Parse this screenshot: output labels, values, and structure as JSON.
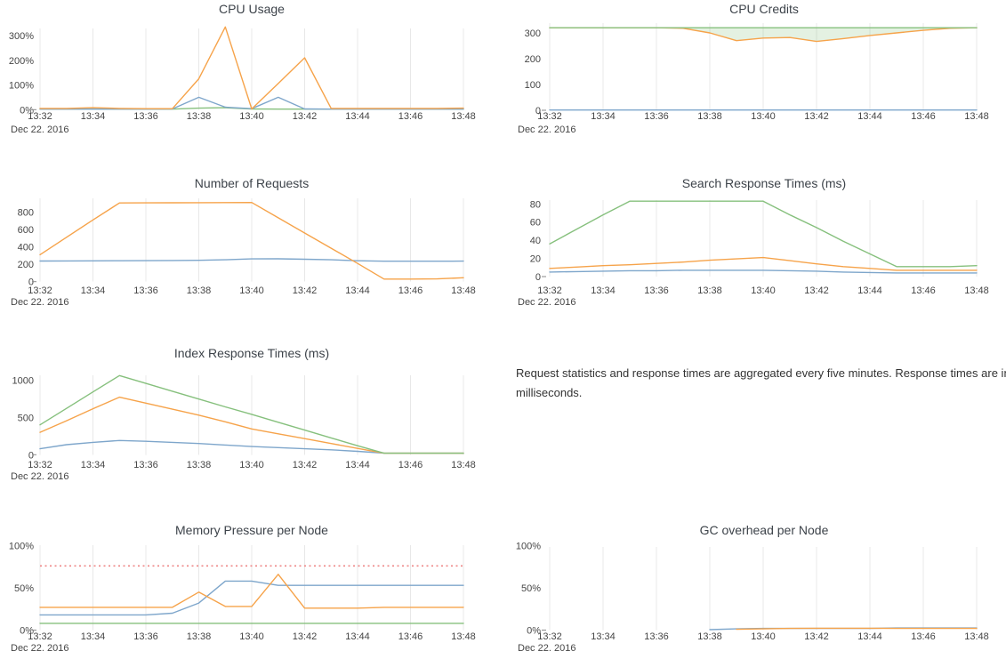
{
  "palette": {
    "blue": "#7ea6cb",
    "orange": "#f6a34a",
    "green": "#86c07d",
    "red": "#ee8686",
    "grid": "#e8e8e8",
    "axis_tick": "#8a8a8a",
    "title_color": "#3d434a",
    "tick_label_color": "#454545",
    "note_color": "#333333",
    "background": "#ffffff"
  },
  "note": {
    "text": "Request statistics and response times are aggregated every five minutes. Response times are in milliseconds."
  },
  "chart_data": [
    {
      "id": "cpu_usage",
      "type": "line",
      "title": "CPU Usage",
      "x_ticks": [
        "13:32",
        "13:34",
        "13:36",
        "13:38",
        "13:40",
        "13:42",
        "13:44",
        "13:46",
        "13:48"
      ],
      "x_date_label": "Dec 22. 2016",
      "x_start": "13:32",
      "x_interval_minutes": 1,
      "ylim": [
        0,
        345
      ],
      "grid": true,
      "legend": "none",
      "y_ticks": [
        {
          "value": 0,
          "label": "0%"
        },
        {
          "value": 100,
          "label": "100%"
        },
        {
          "value": 200,
          "label": "200%"
        },
        {
          "value": 300,
          "label": "300%"
        }
      ],
      "series": [
        {
          "name": "green",
          "color": "green",
          "values": [
            2,
            2,
            3,
            2,
            2,
            2,
            6,
            8,
            3,
            2,
            2,
            2,
            2,
            2,
            2,
            2,
            2
          ]
        },
        {
          "name": "blue",
          "color": "blue",
          "values": [
            2,
            2,
            2,
            2,
            2,
            3,
            50,
            10,
            4,
            50,
            3,
            2,
            2,
            2,
            2,
            2,
            2
          ]
        },
        {
          "name": "orange",
          "color": "orange",
          "values": [
            5,
            5,
            8,
            5,
            4,
            4,
            125,
            335,
            3,
            106,
            210,
            5,
            5,
            5,
            5,
            5,
            6
          ]
        }
      ]
    },
    {
      "id": "cpu_credits",
      "type": "line",
      "title": "CPU Credits",
      "x_ticks": [
        "13:32",
        "13:34",
        "13:36",
        "13:38",
        "13:40",
        "13:42",
        "13:44",
        "13:46",
        "13:48"
      ],
      "x_date_label": "Dec 22. 2016",
      "x_start": "13:32",
      "x_interval_minutes": 1,
      "ylim": [
        0,
        330
      ],
      "grid": true,
      "legend": "none",
      "fill_between": {
        "upper": "green",
        "lower": "orange",
        "color": "green",
        "opacity": 0.22
      },
      "y_ticks": [
        {
          "value": 0,
          "label": "0"
        },
        {
          "value": 100,
          "label": "100"
        },
        {
          "value": 200,
          "label": "200"
        },
        {
          "value": 300,
          "label": "300"
        }
      ],
      "series": [
        {
          "name": "blue",
          "color": "blue",
          "values": [
            1,
            1,
            1,
            1,
            1,
            1,
            1,
            1,
            1,
            1,
            1,
            1,
            1,
            1,
            1,
            1,
            1
          ]
        },
        {
          "name": "orange",
          "color": "orange",
          "values": [
            320,
            320,
            320,
            320,
            320,
            318,
            300,
            270,
            280,
            282,
            267,
            278,
            290,
            300,
            310,
            318,
            320
          ]
        },
        {
          "name": "green",
          "color": "green",
          "values": [
            320,
            320,
            320,
            320,
            320,
            320,
            320,
            320,
            320,
            320,
            320,
            320,
            320,
            320,
            320,
            320,
            320
          ]
        }
      ]
    },
    {
      "id": "number_of_requests",
      "type": "line",
      "title": "Number of Requests",
      "x_ticks": [
        "13:32",
        "13:34",
        "13:36",
        "13:38",
        "13:40",
        "13:42",
        "13:44",
        "13:46",
        "13:48"
      ],
      "x_date_label": "Dec 22. 2016",
      "x_start": "13:32",
      "x_interval_minutes": 1,
      "ylim": [
        0,
        950
      ],
      "grid": true,
      "legend": "none",
      "y_ticks": [
        {
          "value": 0,
          "label": "0"
        },
        {
          "value": 200,
          "label": "200"
        },
        {
          "value": 400,
          "label": "400"
        },
        {
          "value": 600,
          "label": "600"
        },
        {
          "value": 800,
          "label": "800"
        }
      ],
      "series": [
        {
          "name": "blue",
          "color": "blue",
          "values": [
            237,
            238,
            239,
            240,
            241,
            243,
            246,
            252,
            262,
            263,
            258,
            252,
            240,
            235,
            235,
            235,
            236
          ]
        },
        {
          "name": "orange",
          "color": "orange",
          "values": [
            310,
            510,
            710,
            905,
            906,
            907,
            908,
            909,
            910,
            735,
            560,
            385,
            210,
            30,
            30,
            32,
            45
          ]
        }
      ]
    },
    {
      "id": "search_response_times",
      "type": "line",
      "title": "Search Response Times (ms)",
      "x_ticks": [
        "13:32",
        "13:34",
        "13:36",
        "13:38",
        "13:40",
        "13:42",
        "13:44",
        "13:46",
        "13:48"
      ],
      "x_date_label": "Dec 22. 2016",
      "x_start": "13:32",
      "x_interval_minutes": 1,
      "ylim": [
        0,
        92
      ],
      "grid": true,
      "legend": "none",
      "y_ticks": [
        {
          "value": 0,
          "label": "0"
        },
        {
          "value": 20,
          "label": "20"
        },
        {
          "value": 40,
          "label": "40"
        },
        {
          "value": 60,
          "label": "60"
        },
        {
          "value": 80,
          "label": "80"
        }
      ],
      "series": [
        {
          "name": "green",
          "color": "green",
          "values": [
            36,
            52,
            68,
            83,
            83,
            83,
            83,
            83,
            83,
            68,
            54,
            39,
            25,
            11,
            11,
            11,
            12
          ]
        },
        {
          "name": "orange",
          "color": "orange",
          "values": [
            9,
            10.5,
            12,
            13,
            14.5,
            16,
            18,
            19.5,
            21,
            17.5,
            14,
            11,
            9,
            7,
            7,
            7,
            7
          ]
        },
        {
          "name": "blue",
          "color": "blue",
          "values": [
            5,
            5.5,
            6,
            6.5,
            6.5,
            7,
            7,
            7,
            7,
            6.5,
            6,
            5,
            4.5,
            4,
            4,
            4,
            4
          ]
        }
      ]
    },
    {
      "id": "index_response_times",
      "type": "line",
      "title": "Index Response Times (ms)",
      "x_ticks": [
        "13:32",
        "13:34",
        "13:36",
        "13:38",
        "13:40",
        "13:42",
        "13:44",
        "13:46",
        "13:48"
      ],
      "x_date_label": "Dec 22. 2016",
      "x_start": "13:32",
      "x_interval_minutes": 1,
      "ylim": [
        0,
        1150
      ],
      "grid": true,
      "legend": "none",
      "y_ticks": [
        {
          "value": 0,
          "label": "0"
        },
        {
          "value": 500,
          "label": "500"
        },
        {
          "value": 1000,
          "label": "1000"
        }
      ],
      "series": [
        {
          "name": "blue",
          "color": "blue",
          "values": [
            80,
            135,
            165,
            190,
            180,
            165,
            150,
            130,
            110,
            95,
            80,
            65,
            45,
            22,
            20,
            20,
            20
          ]
        },
        {
          "name": "orange",
          "color": "orange",
          "values": [
            300,
            455,
            615,
            770,
            690,
            610,
            530,
            440,
            345,
            280,
            215,
            150,
            85,
            20,
            20,
            20,
            20
          ]
        },
        {
          "name": "green",
          "color": "green",
          "values": [
            400,
            620,
            840,
            1060,
            955,
            850,
            745,
            640,
            540,
            435,
            330,
            225,
            120,
            20,
            20,
            20,
            20
          ]
        }
      ]
    },
    {
      "id": "memory_pressure",
      "type": "line",
      "title": "Memory Pressure per Node",
      "x_ticks": [
        "13:32",
        "13:34",
        "13:36",
        "13:38",
        "13:40",
        "13:42",
        "13:44",
        "13:46",
        "13:48"
      ],
      "x_date_label": "Dec 22. 2016",
      "x_start": "13:32",
      "x_interval_minutes": 1,
      "ylim": [
        0,
        105
      ],
      "grid": true,
      "legend": "none",
      "threshold": {
        "value": 76,
        "style": "dotted",
        "color": "red"
      },
      "y_ticks": [
        {
          "value": 0,
          "label": "0%"
        },
        {
          "value": 50,
          "label": "50%"
        },
        {
          "value": 100,
          "label": "100%"
        }
      ],
      "series": [
        {
          "name": "green",
          "color": "green",
          "values": [
            8,
            8,
            8,
            8,
            8,
            8,
            8,
            8,
            8,
            8,
            8,
            8,
            8,
            8,
            8,
            8,
            8
          ]
        },
        {
          "name": "blue",
          "color": "blue",
          "values": [
            18,
            18,
            18,
            18,
            18,
            20,
            32,
            58,
            58,
            53,
            53,
            53,
            53,
            53,
            53,
            53,
            53
          ]
        },
        {
          "name": "orange",
          "color": "orange",
          "values": [
            27,
            27,
            27,
            27,
            27,
            27,
            45,
            28,
            28,
            66,
            26,
            26,
            26,
            27,
            27,
            27,
            27
          ]
        }
      ]
    },
    {
      "id": "gc_overhead",
      "type": "line",
      "title": "GC overhead per Node",
      "x_ticks": [
        "13:32",
        "13:34",
        "13:36",
        "13:38",
        "13:40",
        "13:42",
        "13:44",
        "13:46",
        "13:48"
      ],
      "x_date_label": "Dec 22. 2016",
      "x_start": "13:32",
      "x_interval_minutes": 1,
      "ylim": [
        0,
        105
      ],
      "grid": true,
      "legend": "none",
      "y_ticks": [
        {
          "value": 0,
          "label": "0%"
        },
        {
          "value": 50,
          "label": "50%"
        },
        {
          "value": 100,
          "label": "100%"
        }
      ],
      "series": [
        {
          "name": "blue",
          "color": "blue",
          "values": [
            null,
            null,
            null,
            null,
            null,
            null,
            0.5,
            1.5,
            2,
            2,
            2,
            2,
            2,
            2.5,
            2.5,
            2.5,
            2.5
          ]
        },
        {
          "name": "orange",
          "color": "orange",
          "values": [
            null,
            null,
            null,
            null,
            null,
            null,
            null,
            1,
            1.5,
            2,
            2.2,
            2.2,
            2.2,
            2,
            2,
            2,
            2
          ]
        }
      ]
    }
  ]
}
